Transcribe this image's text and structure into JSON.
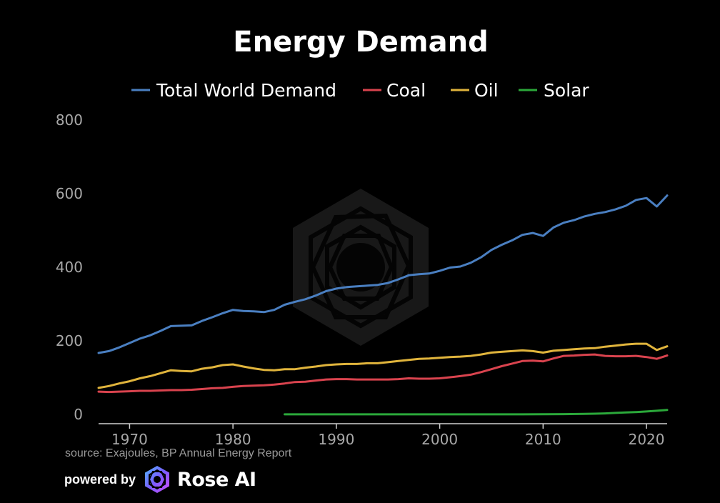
{
  "chart_data": {
    "type": "line",
    "title": "Energy Demand",
    "xlim": [
      1967,
      2022
    ],
    "ylim": [
      0,
      800
    ],
    "x_ticks": [
      1970,
      1980,
      1990,
      2000,
      2010,
      2020
    ],
    "y_ticks": [
      0,
      200,
      400,
      600,
      800
    ],
    "grid": false,
    "legend_position": "top-center",
    "series": [
      {
        "name": "Total World Demand",
        "color": "#4a7fc1",
        "x": [
          1967,
          1968,
          1969,
          1970,
          1971,
          1972,
          1973,
          1974,
          1975,
          1976,
          1977,
          1978,
          1979,
          1980,
          1981,
          1982,
          1983,
          1984,
          1985,
          1986,
          1987,
          1988,
          1989,
          1990,
          1991,
          1992,
          1993,
          1994,
          1995,
          1996,
          1997,
          1998,
          1999,
          2000,
          2001,
          2002,
          2003,
          2004,
          2005,
          2006,
          2007,
          2008,
          2009,
          2010,
          2011,
          2012,
          2013,
          2014,
          2015,
          2016,
          2017,
          2018,
          2019,
          2020,
          2021,
          2022
        ],
        "values": [
          167,
          172,
          182,
          194,
          206,
          215,
          227,
          240,
          241,
          242,
          254,
          264,
          275,
          284,
          281,
          280,
          278,
          284,
          298,
          306,
          313,
          323,
          335,
          342,
          346,
          348,
          350,
          352,
          357,
          367,
          378,
          381,
          383,
          390,
          399,
          402,
          412,
          427,
          447,
          461,
          473,
          488,
          493,
          485,
          508,
          521,
          528,
          538,
          545,
          550,
          557,
          567,
          583,
          588,
          565,
          595
        ]
      },
      {
        "name": "Coal",
        "color": "#d9434e",
        "x": [
          1967,
          1968,
          1969,
          1970,
          1971,
          1972,
          1973,
          1974,
          1975,
          1976,
          1977,
          1978,
          1979,
          1980,
          1981,
          1982,
          1983,
          1984,
          1985,
          1986,
          1987,
          1988,
          1989,
          1990,
          1991,
          1992,
          1993,
          1994,
          1995,
          1996,
          1997,
          1998,
          1999,
          2000,
          2001,
          2002,
          2003,
          2004,
          2005,
          2006,
          2007,
          2008,
          2009,
          2010,
          2011,
          2012,
          2013,
          2014,
          2015,
          2016,
          2017,
          2018,
          2019,
          2020,
          2021,
          2022
        ],
        "values": [
          62,
          61,
          62,
          63,
          64,
          64,
          65,
          66,
          66,
          67,
          69,
          71,
          72,
          75,
          77,
          78,
          79,
          81,
          84,
          88,
          89,
          92,
          95,
          96,
          96,
          95,
          95,
          95,
          95,
          96,
          98,
          97,
          97,
          98,
          101,
          104,
          108,
          115,
          123,
          131,
          138,
          145,
          146,
          144,
          152,
          159,
          160,
          162,
          163,
          159,
          158,
          158,
          159,
          156,
          151,
          160
        ]
      },
      {
        "name": "Oil",
        "color": "#e0b43c",
        "x": [
          1967,
          1968,
          1969,
          1970,
          1971,
          1972,
          1973,
          1974,
          1975,
          1976,
          1977,
          1978,
          1979,
          1980,
          1981,
          1982,
          1983,
          1984,
          1985,
          1986,
          1987,
          1988,
          1989,
          1990,
          1991,
          1992,
          1993,
          1994,
          1995,
          1996,
          1997,
          1998,
          1999,
          2000,
          2001,
          2002,
          2003,
          2004,
          2005,
          2006,
          2007,
          2008,
          2009,
          2010,
          2011,
          2012,
          2013,
          2014,
          2015,
          2016,
          2017,
          2018,
          2019,
          2020,
          2021,
          2022
        ],
        "values": [
          72,
          77,
          84,
          90,
          98,
          104,
          112,
          120,
          118,
          117,
          124,
          128,
          134,
          136,
          130,
          125,
          121,
          120,
          123,
          123,
          127,
          130,
          134,
          136,
          137,
          137,
          139,
          139,
          142,
          145,
          148,
          151,
          152,
          154,
          156,
          157,
          159,
          163,
          168,
          170,
          172,
          174,
          172,
          168,
          173,
          175,
          177,
          179,
          180,
          184,
          187,
          190,
          192,
          192,
          175,
          185
        ]
      },
      {
        "name": "Solar",
        "color": "#2ba83a",
        "x": [
          1985,
          1990,
          1995,
          2000,
          2005,
          2008,
          2010,
          2012,
          2014,
          2015,
          2016,
          2017,
          2018,
          2019,
          2020,
          2021,
          2022
        ],
        "values": [
          0.1,
          0.1,
          0.1,
          0.1,
          0.2,
          0.2,
          0.3,
          0.8,
          1.5,
          2.0,
          2.8,
          4.0,
          5.5,
          6.5,
          8.0,
          10.0,
          12.0
        ]
      }
    ]
  },
  "footer": {
    "source": "source: Exajoules, BP Annual Energy Report",
    "powered_by": "powered by",
    "brand": "Rose AI"
  }
}
